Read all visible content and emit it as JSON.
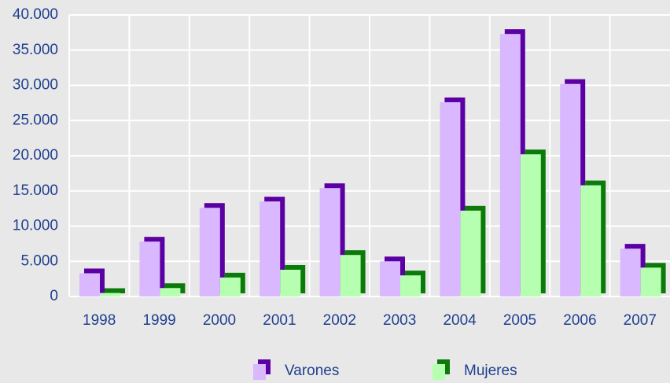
{
  "chart_data": {
    "type": "bar",
    "categories": [
      "1998",
      "1999",
      "2000",
      "2001",
      "2002",
      "2003",
      "2004",
      "2005",
      "2006",
      "2007"
    ],
    "series": [
      {
        "name": "Varones",
        "color": "#d9b8ff",
        "shadow_color": "#5b00a3",
        "values": [
          3300,
          7800,
          12600,
          13500,
          15400,
          5000,
          27600,
          37300,
          30200,
          6800
        ]
      },
      {
        "name": "Mujeres",
        "color": "#b6ffb0",
        "shadow_color": "#0b7a0b",
        "values": [
          500,
          1200,
          2700,
          3800,
          5900,
          3000,
          12200,
          20200,
          15800,
          4100
        ]
      }
    ],
    "ylim": [
      0,
      40000
    ],
    "yticks": [
      0,
      {
        "value": 5000,
        "label": "5.000"
      },
      {
        "value": 10000,
        "label": "10.000"
      },
      {
        "value": 15000,
        "label": "15.000"
      },
      {
        "value": 20000,
        "label": "20.000"
      },
      {
        "value": 25000,
        "label": "25.000"
      },
      {
        "value": 30000,
        "label": "30.000"
      },
      {
        "value": 35000,
        "label": "35.000"
      },
      {
        "value": 40000,
        "label": "40.000"
      }
    ],
    "grid": true,
    "legend": "bottom"
  }
}
